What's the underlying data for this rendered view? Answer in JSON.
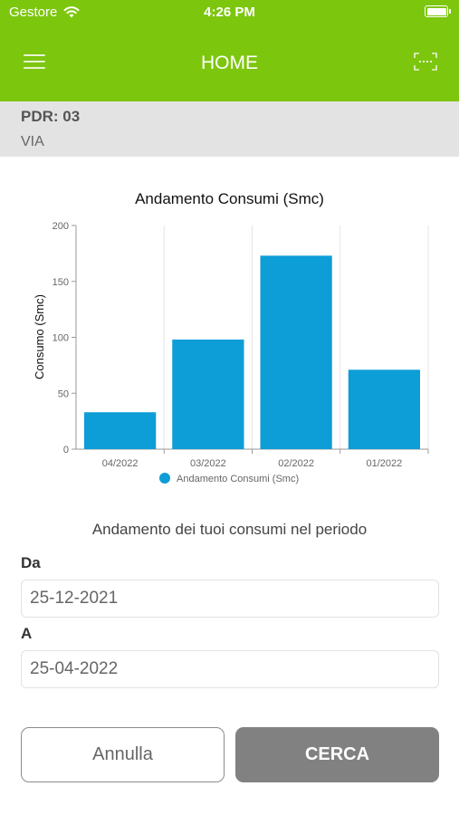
{
  "status_bar": {
    "carrier": "Gestore",
    "time": "4:26 PM"
  },
  "nav": {
    "title": "HOME"
  },
  "icons": {
    "menu": "hamburger-menu-icon",
    "scan": "barcode-scan-icon",
    "wifi": "wifi-icon",
    "battery": "battery-icon"
  },
  "colors": {
    "header": "#7dc60e",
    "bar": "#0d9dd7",
    "search_button": "#818181"
  },
  "pdr": {
    "code": "PDR: 03",
    "address": "VIA"
  },
  "chart_data": {
    "type": "bar",
    "title": "Andamento Consumi (Smc)",
    "ylabel": "Consumo (Smc)",
    "xlabel": "",
    "categories": [
      "04/2022",
      "03/2022",
      "02/2022",
      "01/2022"
    ],
    "series": [
      {
        "name": "Andamento Consumi (Smc)",
        "values": [
          33,
          98,
          173,
          71
        ]
      }
    ],
    "ylim": [
      0,
      200
    ],
    "yticks": [
      0,
      50,
      100,
      150,
      200
    ],
    "grid": "vertical",
    "legend": "bottom"
  },
  "form": {
    "period_text": "Andamento dei tuoi consumi nel periodo",
    "from_label": "Da",
    "from_value": "25-12-2021",
    "to_label": "A",
    "to_value": "25-04-2022"
  },
  "buttons": {
    "cancel": "Annulla",
    "search": "CERCA"
  }
}
